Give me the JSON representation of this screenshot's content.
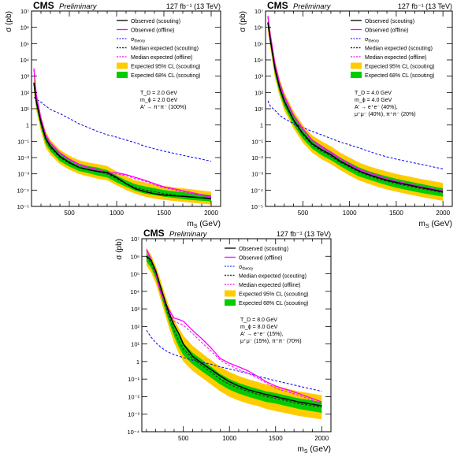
{
  "chart_data": [
    {
      "type": "line",
      "header": {
        "experiment": "CMS",
        "status": "Preliminary",
        "lumi": "127 fb⁻¹ (13 TeV)"
      },
      "xlabel": "m_S (GeV)",
      "ylabel": "σ (pb)",
      "xlim": [
        100,
        2100
      ],
      "ylim": [
        1e-05,
        10000000.0
      ],
      "ylog": true,
      "xticks": [
        500,
        1000,
        1500,
        2000
      ],
      "yticks": [
        "10⁻⁵",
        "10⁻⁴",
        "10⁻³",
        "10⁻²",
        "10⁻¹",
        "1",
        "10¹",
        "10²",
        "10³",
        "10⁴",
        "10⁵",
        "10⁶",
        "10⁷"
      ],
      "legend": [
        "Observed (scouting)",
        "Observed (offline)",
        "σ_theory",
        "Median expected (scouting)",
        "Median expected (offline)",
        "Expected 95% CL (scouting)",
        "Expected 68% CL (scouting)"
      ],
      "annotation": [
        "T_D = 2.0 GeV",
        "m_ϕ = 2.0 GeV",
        "A' → π⁺π⁻ (100%)"
      ],
      "x": [
        125,
        150,
        200,
        250,
        300,
        400,
        500,
        600,
        700,
        800,
        900,
        1000,
        1100,
        1200,
        1300,
        1400,
        1500,
        1750,
        2000
      ],
      "series": [
        {
          "name": "Observed (scouting)",
          "values": [
            400,
            30,
            1.5,
            0.15,
            0.05,
            0.012,
            0.005,
            0.0025,
            0.0018,
            0.0014,
            0.0012,
            0.0006,
            0.00025,
            0.00012,
            8e-05,
            6e-05,
            5e-05,
            4e-05,
            3e-05
          ]
        },
        {
          "name": "Observed (offline)",
          "values": [
            3000,
            80,
            2.5,
            0.25,
            0.08,
            0.02,
            0.008,
            0.004,
            0.0025,
            0.0018,
            0.0012,
            0.0012,
            0.0009,
            0.0006,
            0.0004,
            0.00025,
            0.00016,
            8e-05,
            4e-05
          ]
        },
        {
          "name": "σ_theory",
          "values": [
            50,
            40,
            25,
            15,
            9,
            5,
            2.5,
            1.2,
            0.7,
            0.4,
            0.25,
            0.18,
            0.12,
            0.08,
            0.05,
            0.035,
            0.025,
            0.012,
            0.006
          ]
        },
        {
          "name": "Median expected (scouting)",
          "values": [
            350,
            25,
            1.2,
            0.12,
            0.04,
            0.01,
            0.0045,
            0.0025,
            0.0018,
            0.0014,
            0.001,
            0.0005,
            0.00025,
            0.00014,
            0.0001,
            8e-05,
            6e-05,
            4e-05,
            3e-05
          ]
        },
        {
          "name": "Median expected (offline)",
          "values": [
            2500,
            60,
            2,
            0.2,
            0.07,
            0.018,
            0.007,
            0.0035,
            0.0022,
            0.0016,
            0.001,
            0.001,
            0.0008,
            0.0005,
            0.00035,
            0.00022,
            0.00014,
            7e-05,
            3.5e-05
          ]
        },
        {
          "name": "Expected 95% CL (scouting)",
          "low": [
            120,
            8,
            0.4,
            0.04,
            0.015,
            0.004,
            0.0018,
            0.001,
            0.0007,
            0.0005,
            0.0004,
            0.0002,
            0.0001,
            6e-05,
            4e-05,
            3e-05,
            2.5e-05,
            1.8e-05,
            1.3e-05
          ],
          "high": [
            1000,
            80,
            4,
            0.4,
            0.12,
            0.03,
            0.013,
            0.007,
            0.005,
            0.004,
            0.003,
            0.0014,
            0.0007,
            0.0004,
            0.0003,
            0.00022,
            0.00018,
            0.00012,
            8e-05
          ]
        },
        {
          "name": "Expected 68% CL (scouting)",
          "low": [
            200,
            14,
            0.7,
            0.07,
            0.024,
            0.006,
            0.0028,
            0.0015,
            0.0011,
            0.0008,
            0.0006,
            0.0003,
            0.00016,
            9e-05,
            6e-05,
            5e-05,
            4e-05,
            2.6e-05,
            2e-05
          ],
          "high": [
            600,
            45,
            2.2,
            0.22,
            0.07,
            0.018,
            0.008,
            0.0042,
            0.003,
            0.0024,
            0.0017,
            0.0008,
            0.0004,
            0.00023,
            0.00017,
            0.00013,
            0.0001,
            7e-05,
            5e-05
          ]
        }
      ]
    },
    {
      "type": "line",
      "header": {
        "experiment": "CMS",
        "status": "Preliminary",
        "lumi": "127 fb⁻¹ (13 TeV)"
      },
      "xlabel": "m_S (GeV)",
      "ylabel": "σ (pb)",
      "xlim": [
        100,
        2100
      ],
      "ylim": [
        1e-05,
        100000000.0
      ],
      "ylog": true,
      "xticks": [
        500,
        1000,
        1500,
        2000
      ],
      "yticks": [
        "10⁻⁵",
        "10⁻⁴",
        "10⁻³",
        "10⁻²",
        "10⁻¹",
        "1",
        "10¹",
        "10²",
        "10³",
        "10⁴",
        "10⁵",
        "10⁶",
        "10⁷"
      ],
      "legend": [
        "Observed (scouting)",
        "Observed (offline)",
        "σ_theory",
        "Median expected (scouting)",
        "Median expected (offline)",
        "Expected 95% CL (scouting)",
        "Expected 68% CL (scouting)"
      ],
      "annotation": [
        "T_D = 4.0 GeV",
        "m_ϕ = 4.0 GeV",
        "A' → e⁺e⁻ (40%),",
        "μ⁺μ⁻ (40%), π⁺π⁻ (20%)"
      ],
      "x": [
        125,
        150,
        200,
        250,
        300,
        400,
        500,
        600,
        700,
        800,
        900,
        1000,
        1100,
        1200,
        1300,
        1400,
        1500,
        1750,
        2000
      ],
      "series": [
        {
          "name": "Observed (scouting)",
          "values": [
            2000000,
            200000,
            3000,
            200,
            30,
            2,
            0.3,
            0.07,
            0.03,
            0.015,
            0.006,
            0.003,
            0.0015,
            0.0009,
            0.0006,
            0.0004,
            0.0003,
            0.00015,
            8e-05
          ]
        },
        {
          "name": "Observed (offline)",
          "values": [
            5000000,
            400000,
            6000,
            400,
            60,
            4,
            0.6,
            0.12,
            0.05,
            0.022,
            0.009,
            0.004,
            0.002,
            0.0012,
            0.0008,
            0.0005,
            0.00035,
            0.00017,
            9e-05
          ]
        },
        {
          "name": "σ_theory",
          "values": [
            30,
            15,
            8,
            4,
            2.5,
            1.2,
            0.7,
            0.4,
            0.25,
            0.15,
            0.09,
            0.06,
            0.04,
            0.025,
            0.016,
            0.011,
            0.008,
            0.004,
            0.002
          ]
        },
        {
          "name": "Median expected (scouting)",
          "values": [
            1800000,
            180000,
            2500,
            180,
            25,
            1.8,
            0.25,
            0.06,
            0.025,
            0.012,
            0.005,
            0.0025,
            0.0013,
            0.0008,
            0.0005,
            0.00035,
            0.00025,
            0.00013,
            7e-05
          ]
        },
        {
          "name": "Median expected (offline)",
          "values": [
            4000000,
            350000,
            5000,
            350,
            50,
            3.5,
            0.5,
            0.1,
            0.04,
            0.018,
            0.008,
            0.0035,
            0.0018,
            0.001,
            0.0007,
            0.00045,
            0.0003,
            0.00015,
            8e-05
          ]
        },
        {
          "name": "Expected 95% CL (scouting)",
          "low": [
            600000,
            60000,
            800,
            60,
            8,
            0.6,
            0.08,
            0.02,
            0.008,
            0.004,
            0.0017,
            0.0008,
            0.0004,
            0.00025,
            0.00016,
            0.00011,
            8e-05,
            4e-05,
            2.2e-05
          ],
          "high": [
            7000000,
            700000,
            10000,
            700,
            100,
            7,
            1,
            0.23,
            0.1,
            0.05,
            0.02,
            0.01,
            0.005,
            0.003,
            0.002,
            0.0014,
            0.001,
            0.0005,
            0.00028
          ]
        },
        {
          "name": "Expected 68% CL (scouting)",
          "low": [
            1000000,
            100000,
            1400,
            100,
            14,
            1,
            0.14,
            0.035,
            0.014,
            0.007,
            0.003,
            0.0014,
            0.0007,
            0.00045,
            0.0003,
            0.0002,
            0.00014,
            7e-05,
            4e-05
          ],
          "high": [
            3500000,
            350000,
            5000,
            350,
            50,
            3.5,
            0.5,
            0.12,
            0.05,
            0.024,
            0.01,
            0.005,
            0.0025,
            0.0015,
            0.001,
            0.0007,
            0.0005,
            0.00025,
            0.00013
          ]
        }
      ]
    },
    {
      "type": "line",
      "header": {
        "experiment": "CMS",
        "status": "Preliminary",
        "lumi": "127 fb⁻¹ (13 TeV)"
      },
      "xlabel": "m_S (GeV)",
      "ylabel": "σ (pb)",
      "xlim": [
        50,
        2100
      ],
      "ylim": [
        0.0001,
        10000000.0
      ],
      "ylog": true,
      "xticks": [
        500,
        1000,
        1500,
        2000
      ],
      "yticks": [
        "10⁻⁴",
        "10⁻³",
        "10⁻²",
        "10⁻¹",
        "1",
        "10¹",
        "10²",
        "10³",
        "10⁴",
        "10⁵",
        "10⁶",
        "10⁷"
      ],
      "legend": [
        "Observed (scouting)",
        "Observed (offline)",
        "σ_theory",
        "Median expected (scouting)",
        "Median expected (offline)",
        "Expected 95% CL (scouting)",
        "Expected 68% CL (scouting)"
      ],
      "annotation": [
        "T_D = 8.0 GeV",
        "m_ϕ = 8.0 GeV",
        "A' → e⁺e⁻ (15%),",
        "μ⁺μ⁻ (15%), π⁺π⁻ (70%)"
      ],
      "x": [
        100,
        150,
        200,
        250,
        300,
        350,
        400,
        450,
        500,
        600,
        700,
        800,
        900,
        1000,
        1100,
        1200,
        1300,
        1400,
        1500,
        1750,
        2000
      ],
      "series": [
        {
          "name": "Observed (scouting)",
          "values": [
            1000000,
            600000,
            150000,
            20000,
            3000,
            500,
            120,
            40,
            10,
            2,
            0.8,
            0.35,
            0.15,
            0.07,
            0.04,
            0.025,
            0.018,
            0.013,
            0.01,
            0.005,
            0.003
          ]
        },
        {
          "name": "Observed (offline)",
          "values": [
            2500000,
            700000,
            120000,
            10000,
            2500,
            800,
            300,
            250,
            200,
            60,
            20,
            6,
            1.5,
            0.8,
            0.5,
            0.3,
            0.15,
            0.07,
            0.04,
            0.015,
            0.005
          ]
        },
        {
          "name": "σ_theory",
          "values": [
            60,
            25,
            12,
            7,
            4.5,
            3.2,
            2.5,
            2,
            1.7,
            1.2,
            0.9,
            0.7,
            0.5,
            0.38,
            0.28,
            0.21,
            0.15,
            0.11,
            0.08,
            0.04,
            0.02
          ]
        },
        {
          "name": "Median expected (scouting)",
          "values": [
            900000,
            400000,
            100000,
            15000,
            2000,
            300,
            60,
            15,
            5,
            1.5,
            0.6,
            0.25,
            0.1,
            0.05,
            0.03,
            0.02,
            0.014,
            0.01,
            0.008,
            0.004,
            0.0025
          ]
        },
        {
          "name": "Median expected (offline)",
          "values": [
            2000000,
            600000,
            100000,
            9000,
            2000,
            600,
            200,
            150,
            120,
            40,
            12,
            4,
            1.2,
            0.6,
            0.35,
            0.22,
            0.12,
            0.06,
            0.03,
            0.012,
            0.004
          ]
        },
        {
          "name": "Expected 95% CL (scouting)",
          "low": [
            300000,
            120000,
            30000,
            4000,
            500,
            70,
            12,
            3,
            1,
            0.3,
            0.12,
            0.05,
            0.02,
            0.01,
            0.006,
            0.004,
            0.003,
            0.002,
            0.0015,
            0.0008,
            0.0005
          ],
          "high": [
            3000000,
            1200000,
            300000,
            50000,
            7000,
            1200,
            250,
            80,
            30,
            8,
            3,
            1.2,
            0.5,
            0.25,
            0.15,
            0.1,
            0.07,
            0.05,
            0.04,
            0.02,
            0.012
          ]
        },
        {
          "name": "Expected 68% CL (scouting)",
          "low": [
            500000,
            220000,
            55000,
            8000,
            1000,
            150,
            28,
            7,
            2.3,
            0.7,
            0.28,
            0.12,
            0.05,
            0.025,
            0.015,
            0.01,
            0.007,
            0.005,
            0.004,
            0.002,
            0.0012
          ],
          "high": [
            1600000,
            700000,
            180000,
            28000,
            4000,
            600,
            120,
            35,
            11,
            3.2,
            1.3,
            0.5,
            0.2,
            0.1,
            0.06,
            0.04,
            0.028,
            0.02,
            0.016,
            0.008,
            0.005
          ]
        }
      ]
    }
  ],
  "colors": {
    "observed_scouting": "#000000",
    "observed_offline": "#ff00ff",
    "theory": "#0000ff",
    "median_scouting": "#333333",
    "median_offline": "#ff00ff",
    "band95": "#ffcc00",
    "band68": "#00cc00"
  },
  "legend_labels": {
    "sigma": "σ",
    "theory_sub": "theory"
  },
  "axis_units": {
    "x_main": "m",
    "x_sub": "S",
    "x_unit": " (GeV)",
    "y": "σ (pb)"
  }
}
